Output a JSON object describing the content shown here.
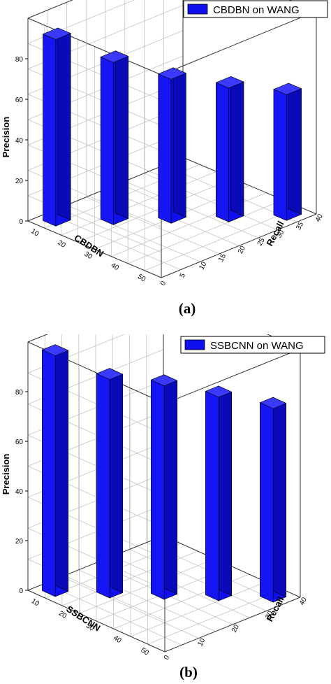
{
  "chart_data": [
    {
      "type": "bar3d",
      "panel_label": "(a)",
      "legend": "CBDBN on WANG",
      "ylabel": "Precision",
      "xlabel": "CBDBN",
      "zlabel": "Recall",
      "y_ticks": [
        "0",
        "20",
        "40",
        "60",
        "80"
      ],
      "x_ticks": [
        "10",
        "20",
        "30",
        "40",
        "50"
      ],
      "z_ticks": [
        "0",
        "5",
        "10",
        "15",
        "20",
        "25",
        "30",
        "35",
        "40"
      ],
      "ylim": [
        0,
        100
      ],
      "grid": true,
      "legend_position": "top-right",
      "bar_color": "#1010ee",
      "values": [
        92,
        80,
        71,
        66,
        62
      ]
    },
    {
      "type": "bar3d",
      "panel_label": "(b)",
      "legend": "SSBCNN on WANG",
      "ylabel": "Precision",
      "xlabel": "SSBCNN",
      "zlabel": "Recall",
      "y_ticks": [
        "0",
        "20",
        "40",
        "60",
        "80"
      ],
      "x_ticks": [
        "10",
        "20",
        "30",
        "40",
        "50"
      ],
      "z_ticks": [
        "0",
        "10",
        "20",
        "30",
        "40"
      ],
      "ylim": [
        0,
        100
      ],
      "grid": true,
      "legend_position": "top-right",
      "bar_color": "#1010ee",
      "values": [
        97,
        88,
        86,
        82,
        78
      ]
    }
  ]
}
